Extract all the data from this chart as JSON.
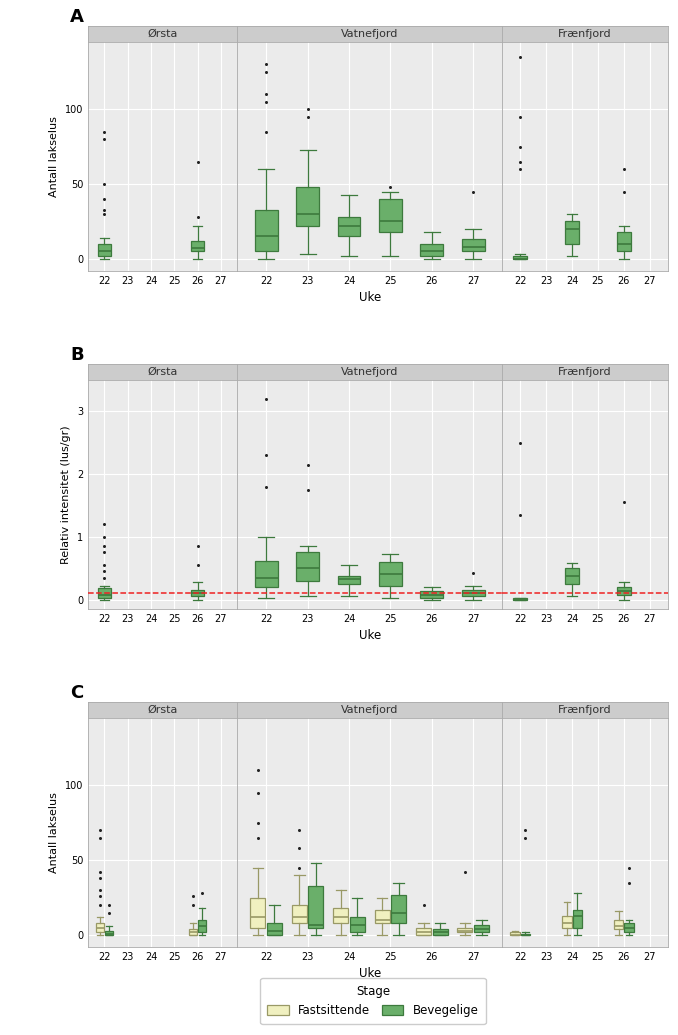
{
  "panel_labels": [
    "A",
    "B",
    "C"
  ],
  "stations": [
    "Ørsta",
    "Vatnefjord",
    "Frænfjord"
  ],
  "green_face": "#6aaf6a",
  "green_edge": "#3d7a3d",
  "cream_face": "#f0f0c0",
  "cream_edge": "#999966",
  "red_dashed": "#ee2222",
  "facet_bg": "#ebebeb",
  "plot_bg": "#ebebeb",
  "grid_color": "#ffffff",
  "header_bg": "#cccccc",
  "header_text": "#333333",
  "A": {
    "ylabel": "Antall lakselus",
    "xlabel": "Uke",
    "ylim": [
      -8,
      145
    ],
    "yticks": [
      0,
      50,
      100
    ],
    "Ørsta": {
      "boxes": [
        {
          "week": 22,
          "q1": 2,
          "med": 5,
          "q3": 10,
          "whislo": 0,
          "whishi": 14,
          "fliers": [
            30,
            33,
            40,
            50,
            80,
            85
          ]
        },
        {
          "week": 26,
          "q1": 5,
          "med": 7,
          "q3": 12,
          "whislo": 0,
          "whishi": 22,
          "fliers": [
            28,
            65
          ]
        }
      ]
    },
    "Vatnefjord": {
      "boxes": [
        {
          "week": 22,
          "q1": 5,
          "med": 15,
          "q3": 33,
          "whislo": 0,
          "whishi": 60,
          "fliers": [
            85,
            105,
            110,
            125,
            130
          ]
        },
        {
          "week": 23,
          "q1": 22,
          "med": 30,
          "q3": 48,
          "whislo": 3,
          "whishi": 73,
          "fliers": [
            95,
            100
          ]
        },
        {
          "week": 24,
          "q1": 15,
          "med": 22,
          "q3": 28,
          "whislo": 2,
          "whishi": 43,
          "fliers": []
        },
        {
          "week": 25,
          "q1": 18,
          "med": 25,
          "q3": 40,
          "whislo": 2,
          "whishi": 45,
          "fliers": [
            48
          ]
        },
        {
          "week": 26,
          "q1": 2,
          "med": 5,
          "q3": 10,
          "whislo": 0,
          "whishi": 18,
          "fliers": []
        },
        {
          "week": 27,
          "q1": 5,
          "med": 8,
          "q3": 13,
          "whislo": 0,
          "whishi": 20,
          "fliers": [
            45
          ]
        }
      ]
    },
    "Frænfjord": {
      "boxes": [
        {
          "week": 22,
          "q1": 0,
          "med": 0,
          "q3": 2,
          "whislo": 0,
          "whishi": 3,
          "fliers": [
            60,
            65,
            75,
            95,
            135
          ]
        },
        {
          "week": 24,
          "q1": 10,
          "med": 20,
          "q3": 25,
          "whislo": 2,
          "whishi": 30,
          "fliers": []
        },
        {
          "week": 26,
          "q1": 5,
          "med": 10,
          "q3": 18,
          "whislo": 0,
          "whishi": 22,
          "fliers": [
            45,
            60
          ]
        }
      ]
    }
  },
  "B": {
    "ylabel": "Relativ intensitet (lus/gr)",
    "xlabel": "Uke",
    "ylim": [
      -0.15,
      3.5
    ],
    "yticks": [
      0,
      1,
      2,
      3
    ],
    "red_line_y": 0.1,
    "Ørsta": {
      "boxes": [
        {
          "week": 22,
          "q1": 0.02,
          "med": 0.08,
          "q3": 0.18,
          "whislo": 0,
          "whishi": 0.22,
          "fliers": [
            0.35,
            0.45,
            0.55,
            0.75,
            0.85,
            1.0,
            1.2
          ]
        },
        {
          "week": 26,
          "q1": 0.05,
          "med": 0.1,
          "q3": 0.15,
          "whislo": 0,
          "whishi": 0.28,
          "fliers": [
            0.55,
            0.85
          ]
        }
      ]
    },
    "Vatnefjord": {
      "boxes": [
        {
          "week": 22,
          "q1": 0.2,
          "med": 0.35,
          "q3": 0.62,
          "whislo": 0.02,
          "whishi": 1.0,
          "fliers": [
            1.8,
            2.3,
            3.2
          ]
        },
        {
          "week": 23,
          "q1": 0.3,
          "med": 0.5,
          "q3": 0.75,
          "whislo": 0.05,
          "whishi": 0.85,
          "fliers": [
            1.75,
            2.15
          ]
        },
        {
          "week": 24,
          "q1": 0.25,
          "med": 0.32,
          "q3": 0.38,
          "whislo": 0.05,
          "whishi": 0.55,
          "fliers": []
        },
        {
          "week": 25,
          "q1": 0.22,
          "med": 0.4,
          "q3": 0.6,
          "whislo": 0.03,
          "whishi": 0.72,
          "fliers": []
        },
        {
          "week": 26,
          "q1": 0.02,
          "med": 0.08,
          "q3": 0.14,
          "whislo": 0,
          "whishi": 0.2,
          "fliers": []
        },
        {
          "week": 27,
          "q1": 0.05,
          "med": 0.1,
          "q3": 0.15,
          "whislo": 0,
          "whishi": 0.22,
          "fliers": [
            0.42
          ]
        }
      ]
    },
    "Frænfjord": {
      "boxes": [
        {
          "week": 22,
          "q1": 0,
          "med": 0,
          "q3": 0.02,
          "whislo": 0,
          "whishi": 0.03,
          "fliers": [
            1.35,
            2.5
          ]
        },
        {
          "week": 24,
          "q1": 0.25,
          "med": 0.38,
          "q3": 0.5,
          "whislo": 0.05,
          "whishi": 0.58,
          "fliers": []
        },
        {
          "week": 26,
          "q1": 0.08,
          "med": 0.13,
          "q3": 0.2,
          "whislo": 0,
          "whishi": 0.28,
          "fliers": [
            1.55
          ]
        }
      ]
    }
  },
  "C": {
    "ylabel": "Antall lakselus",
    "xlabel": "Uke",
    "ylim": [
      -8,
      145
    ],
    "yticks": [
      0,
      50,
      100
    ],
    "Ørsta": {
      "fastsittende": [
        {
          "week": 22,
          "q1": 2,
          "med": 5,
          "q3": 8,
          "whislo": 0,
          "whishi": 12,
          "fliers": [
            20,
            26,
            30,
            38,
            42,
            65,
            70
          ]
        },
        {
          "week": 26,
          "q1": 0,
          "med": 2,
          "q3": 4,
          "whislo": 0,
          "whishi": 8,
          "fliers": [
            20,
            26
          ]
        }
      ],
      "bevegelige": [
        {
          "week": 22,
          "q1": 0,
          "med": 1,
          "q3": 3,
          "whislo": 0,
          "whishi": 6,
          "fliers": [
            15,
            20
          ]
        },
        {
          "week": 26,
          "q1": 2,
          "med": 6,
          "q3": 10,
          "whislo": 0,
          "whishi": 18,
          "fliers": [
            28
          ]
        }
      ]
    },
    "Vatnefjord": {
      "fastsittende": [
        {
          "week": 22,
          "q1": 5,
          "med": 12,
          "q3": 25,
          "whislo": 0,
          "whishi": 45,
          "fliers": [
            65,
            75,
            95,
            110
          ]
        },
        {
          "week": 23,
          "q1": 8,
          "med": 12,
          "q3": 20,
          "whislo": 0,
          "whishi": 40,
          "fliers": [
            45,
            58,
            70
          ]
        },
        {
          "week": 24,
          "q1": 8,
          "med": 12,
          "q3": 18,
          "whislo": 0,
          "whishi": 30,
          "fliers": []
        },
        {
          "week": 25,
          "q1": 8,
          "med": 10,
          "q3": 17,
          "whislo": 0,
          "whishi": 25,
          "fliers": []
        },
        {
          "week": 26,
          "q1": 0,
          "med": 2,
          "q3": 5,
          "whislo": 0,
          "whishi": 8,
          "fliers": [
            20
          ]
        },
        {
          "week": 27,
          "q1": 2,
          "med": 3,
          "q3": 5,
          "whislo": 0,
          "whishi": 8,
          "fliers": [
            42
          ]
        }
      ],
      "bevegelige": [
        {
          "week": 22,
          "q1": 0,
          "med": 3,
          "q3": 8,
          "whislo": 0,
          "whishi": 20,
          "fliers": []
        },
        {
          "week": 23,
          "q1": 5,
          "med": 7,
          "q3": 33,
          "whislo": 0,
          "whishi": 48,
          "fliers": []
        },
        {
          "week": 24,
          "q1": 2,
          "med": 7,
          "q3": 12,
          "whislo": 0,
          "whishi": 25,
          "fliers": []
        },
        {
          "week": 25,
          "q1": 8,
          "med": 15,
          "q3": 27,
          "whislo": 0,
          "whishi": 35,
          "fliers": []
        },
        {
          "week": 26,
          "q1": 0,
          "med": 2,
          "q3": 4,
          "whislo": 0,
          "whishi": 8,
          "fliers": []
        },
        {
          "week": 27,
          "q1": 2,
          "med": 4,
          "q3": 7,
          "whislo": 0,
          "whishi": 10,
          "fliers": []
        }
      ]
    },
    "Frænfjord": {
      "fastsittende": [
        {
          "week": 22,
          "q1": 0,
          "med": 0,
          "q3": 2,
          "whislo": 0,
          "whishi": 3,
          "fliers": []
        },
        {
          "week": 24,
          "q1": 5,
          "med": 8,
          "q3": 13,
          "whislo": 0,
          "whishi": 22,
          "fliers": []
        },
        {
          "week": 26,
          "q1": 4,
          "med": 6,
          "q3": 10,
          "whislo": 0,
          "whishi": 16,
          "fliers": []
        }
      ],
      "bevegelige": [
        {
          "week": 22,
          "q1": 0,
          "med": 0,
          "q3": 1,
          "whislo": 0,
          "whishi": 2,
          "fliers": [
            65,
            70
          ]
        },
        {
          "week": 24,
          "q1": 5,
          "med": 13,
          "q3": 17,
          "whislo": 0,
          "whishi": 28,
          "fliers": []
        },
        {
          "week": 26,
          "q1": 2,
          "med": 5,
          "q3": 8,
          "whislo": 0,
          "whishi": 10,
          "fliers": [
            35,
            45
          ]
        }
      ]
    }
  }
}
